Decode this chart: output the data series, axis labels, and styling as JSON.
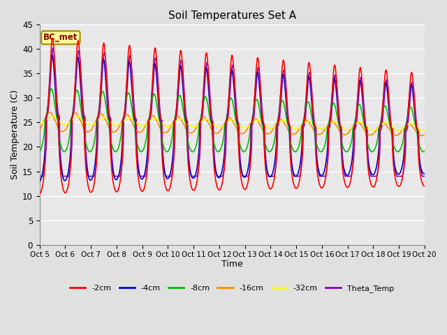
{
  "title": "Soil Temperatures Set A",
  "xlabel": "Time",
  "ylabel": "Soil Temperature (C)",
  "ylim": [
    0,
    45
  ],
  "yticks": [
    0,
    5,
    10,
    15,
    20,
    25,
    30,
    35,
    40,
    45
  ],
  "x_labels": [
    "Oct 5",
    "Oct 6",
    "Oct 7",
    "Oct 8",
    "Oct 9",
    "Oct 10",
    "Oct 11",
    "Oct 12",
    "Oct 13",
    "Oct 14",
    "Oct 15",
    "Oct 16",
    "Oct 17",
    "Oct 18",
    "Oct 19",
    "Oct 20"
  ],
  "annotation": "BC_met",
  "series": {
    "-2cm": {
      "color": "#FF0000",
      "lw": 1.2
    },
    "-4cm": {
      "color": "#0000CC",
      "lw": 1.2
    },
    "-8cm": {
      "color": "#00BB00",
      "lw": 1.2
    },
    "-16cm": {
      "color": "#FF8800",
      "lw": 1.2
    },
    "-32cm": {
      "color": "#FFFF00",
      "lw": 1.2
    },
    "Theta_Temp": {
      "color": "#8800BB",
      "lw": 1.2
    }
  },
  "legend_order": [
    "-2cm",
    "-4cm",
    "-8cm",
    "-16cm",
    "-32cm",
    "Theta_Temp"
  ],
  "fig_background": "#E0E0E0",
  "axes_background": "#E8E8E8",
  "grid_color": "#FFFFFF",
  "lower_band_color": "#D0D0D0"
}
